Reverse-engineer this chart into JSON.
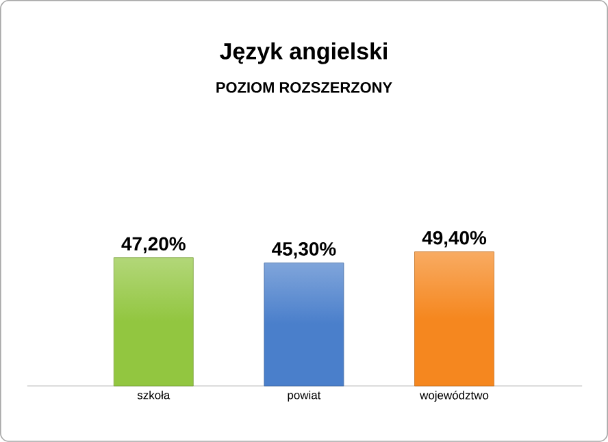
{
  "chart_data": {
    "type": "bar",
    "title": "Język angielski",
    "subtitle": "POZIOM ROZSZERZONY",
    "categories": [
      "szkoła",
      "powiat",
      "województwo"
    ],
    "values": [
      47.2,
      45.3,
      49.4
    ],
    "colors": [
      "#92c640",
      "#4a7fcb",
      "#f5871f"
    ],
    "value_labels": [
      "47,20%",
      "45,30%",
      "49,40%"
    ]
  }
}
